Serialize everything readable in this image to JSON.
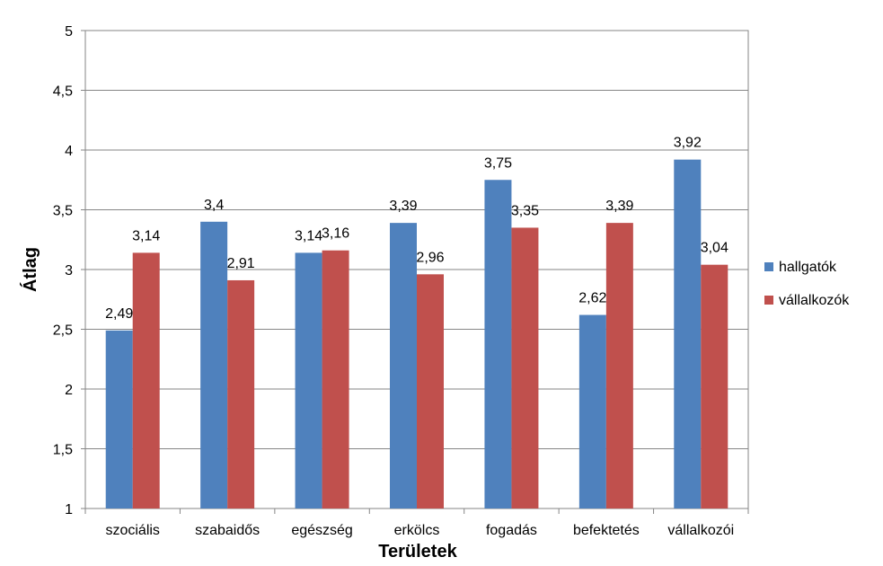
{
  "chart_data": {
    "type": "bar",
    "categories": [
      "szociális",
      "szabaidős",
      "egészség",
      "erkölcs",
      "fogadás",
      "befektetés",
      "vállalkozói"
    ],
    "series": [
      {
        "name": "hallgatók",
        "color": "#4F81BD",
        "values": [
          2.49,
          3.4,
          3.14,
          3.39,
          3.75,
          2.62,
          3.92
        ],
        "labels": [
          "2,49",
          "3,4",
          "3,14",
          "3,39",
          "3,75",
          "2,62",
          "3,92"
        ]
      },
      {
        "name": "vállalkozók",
        "color": "#C0504D",
        "values": [
          3.14,
          2.91,
          3.16,
          2.96,
          3.35,
          3.39,
          3.04
        ],
        "labels": [
          "3,14",
          "2,91",
          "3,16",
          "2,96",
          "3,35",
          "3,39",
          "3,04"
        ]
      }
    ],
    "xlabel": "Területek",
    "ylabel": "Átlag",
    "ylim": [
      1,
      5
    ],
    "yticks": [
      1,
      1.5,
      2,
      2.5,
      3,
      3.5,
      4,
      4.5,
      5
    ],
    "ytick_labels": [
      "1",
      "1,5",
      "2",
      "2,5",
      "3",
      "3,5",
      "4",
      "4,5",
      "5"
    ],
    "grid": true,
    "legend_position": "right"
  }
}
